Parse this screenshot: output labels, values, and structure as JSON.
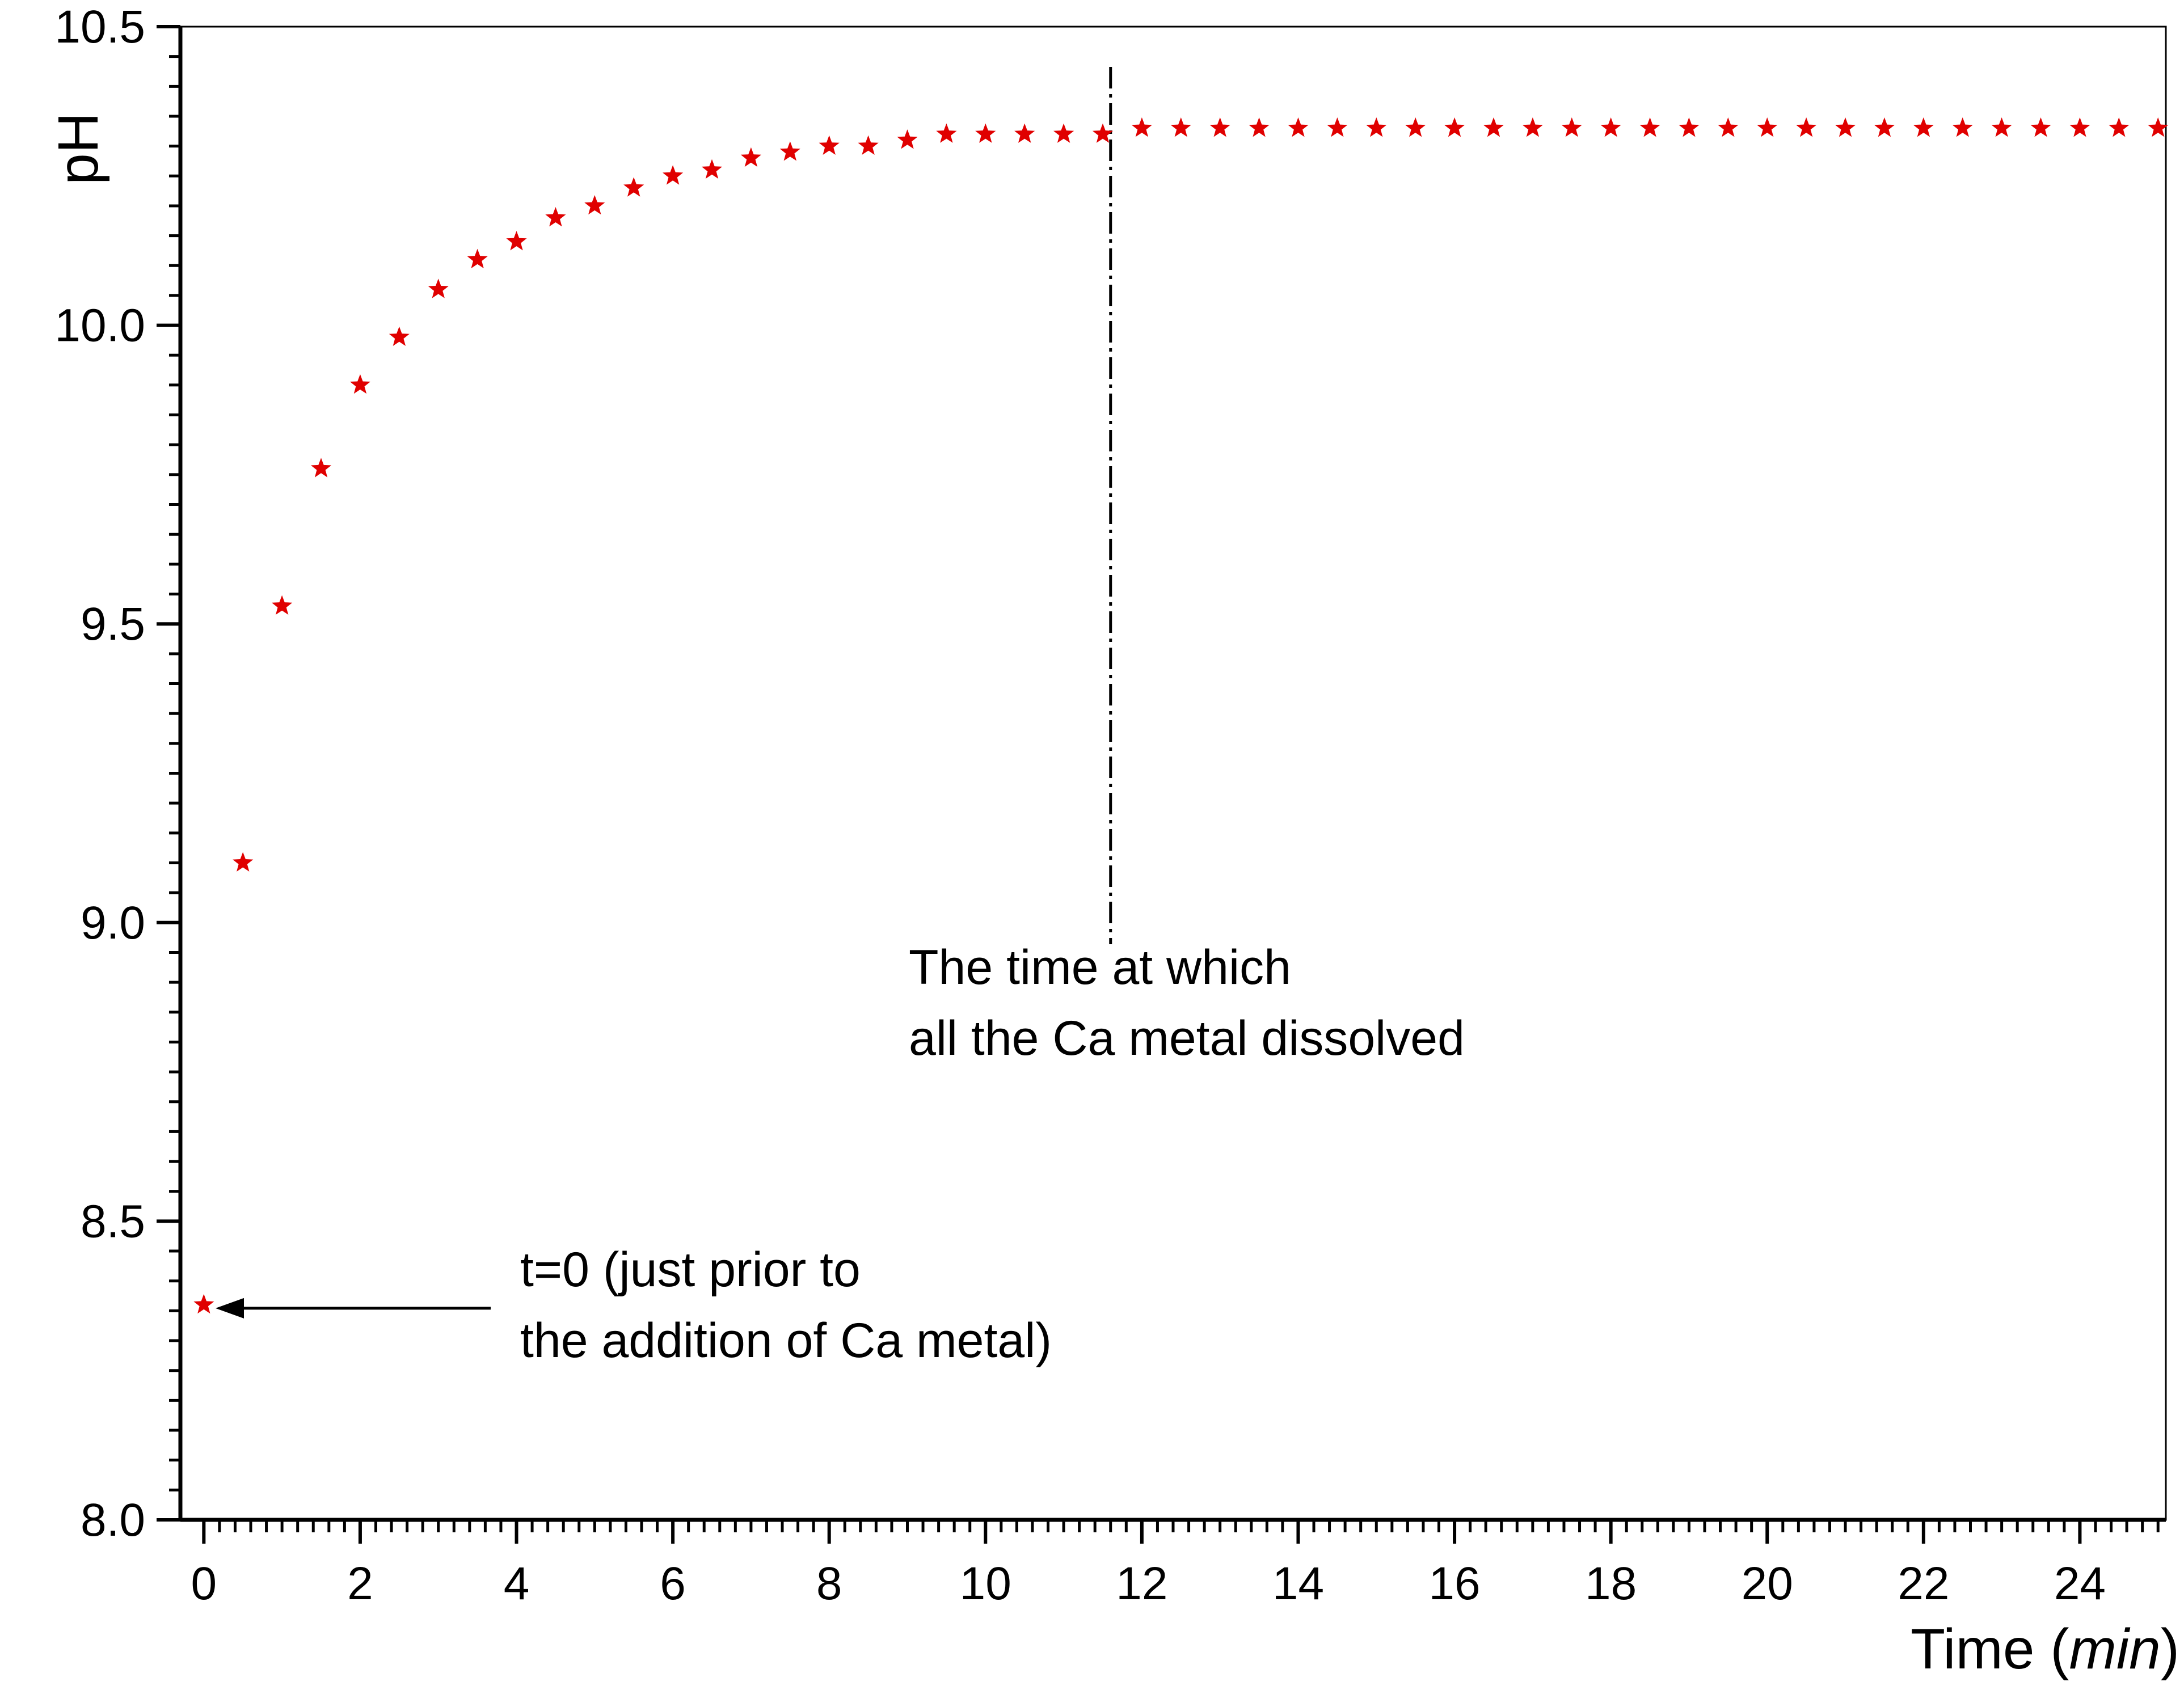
{
  "chart_data": {
    "type": "scatter",
    "xlabel": "Time",
    "xlabel_unit": "min",
    "ylabel": "pH",
    "xlim": [
      -0.3,
      25.1
    ],
    "ylim": [
      8.0,
      10.5
    ],
    "x_ticks": [
      "0",
      "2",
      "4",
      "6",
      "8",
      "10",
      "12",
      "14",
      "16",
      "18",
      "20",
      "22",
      "24"
    ],
    "y_ticks": [
      "8.0",
      "8.5",
      "9.0",
      "9.5",
      "10.0",
      "10.5"
    ],
    "grid": false,
    "legend": "none",
    "marker": "star",
    "marker_color": "#e00000",
    "x": [
      0,
      0.5,
      1,
      1.5,
      2,
      2.5,
      3,
      3.5,
      4,
      4.5,
      5,
      5.5,
      6,
      6.5,
      7,
      7.5,
      8,
      8.5,
      9,
      9.5,
      10,
      10.5,
      11,
      11.5,
      12,
      12.5,
      13,
      13.5,
      14,
      14.5,
      15,
      15.5,
      16,
      16.5,
      17,
      17.5,
      18,
      18.5,
      19,
      19.5,
      20,
      20.5,
      21,
      21.5,
      22,
      22.5,
      23,
      23.5,
      24,
      24.5,
      25
    ],
    "y": [
      8.36,
      9.1,
      9.53,
      9.76,
      9.9,
      9.98,
      10.06,
      10.11,
      10.14,
      10.18,
      10.2,
      10.23,
      10.25,
      10.26,
      10.28,
      10.29,
      10.3,
      10.3,
      10.31,
      10.32,
      10.32,
      10.32,
      10.32,
      10.32,
      10.33,
      10.33,
      10.33,
      10.33,
      10.33,
      10.33,
      10.33,
      10.33,
      10.33,
      10.33,
      10.33,
      10.33,
      10.33,
      10.33,
      10.33,
      10.33,
      10.33,
      10.33,
      10.33,
      10.33,
      10.33,
      10.33,
      10.33,
      10.33,
      10.33,
      10.33,
      10.33
    ],
    "annotations": {
      "dissolved_line_x": 11.6,
      "dissolved_line_color": "#000000",
      "dissolved_text": [
        "The time at which",
        "all the Ca metal dissolved"
      ],
      "t0_text": [
        "t=0  (just prior to",
        "the addition of Ca metal)"
      ],
      "t0_arrow_color": "#000000"
    }
  }
}
